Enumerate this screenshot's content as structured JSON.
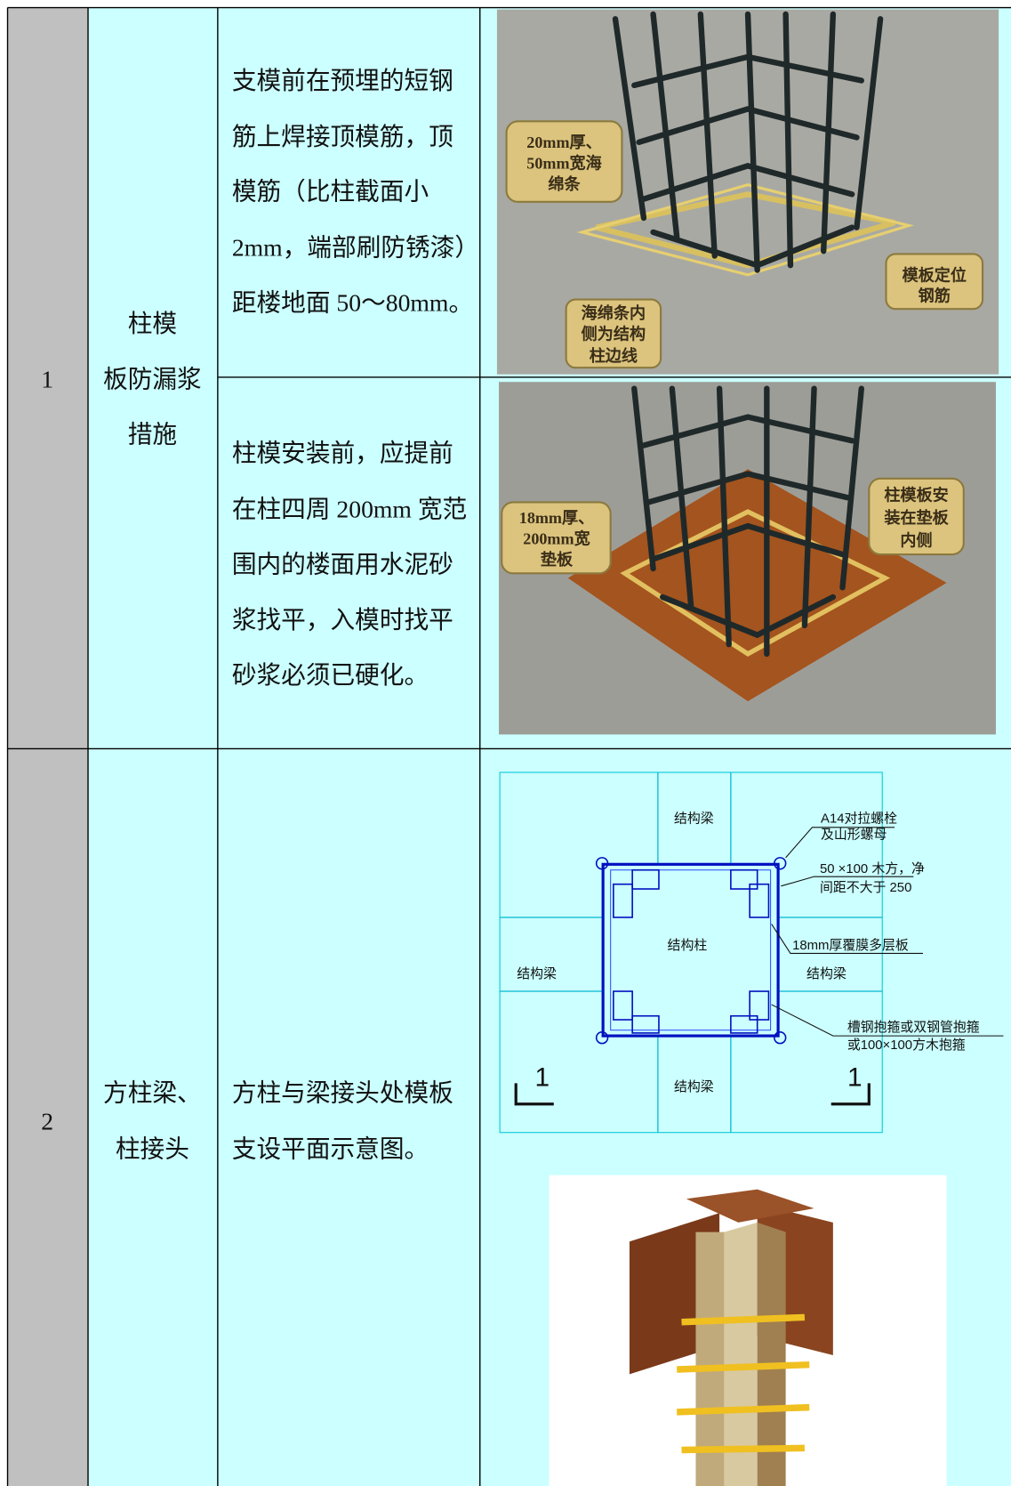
{
  "table": {
    "rows": [
      {
        "no": "1",
        "item": [
          "柱模",
          "板防漏浆",
          "措施"
        ],
        "parts": [
          {
            "text": [
              "支模前在预埋的短钢",
              "筋上焊接顶模筋，顶",
              "模筋（比柱截面小",
              "2mm，端部刷防锈漆）",
              "距楼地面 50～80mm。"
            ],
            "image": {
              "labels": [
                [
                  "20mm厚、",
                  "50mm宽海",
                  "绵条"
                ],
                [
                  "海绵条内",
                  "侧为结构",
                  "柱边线"
                ],
                [
                  "模板定位",
                  "钢筋"
                ]
              ]
            }
          },
          {
            "text": [
              "柱模安装前，应提前",
              "在柱四周 200mm 宽范",
              "围内的楼面用水泥砂",
              "浆找平，入模时找平",
              "砂浆必须已硬化。"
            ],
            "image": {
              "labels": [
                [
                  "18mm厚、",
                  "200mm宽",
                  "垫板"
                ],
                [
                  "柱模板安",
                  "装在垫板",
                  "内侧"
                ]
              ]
            }
          }
        ]
      },
      {
        "no": "2",
        "item": [
          "方柱梁、",
          "柱接头"
        ],
        "parts": [
          {
            "text": [
              "方柱与梁接头处模板",
              "支设平面示意图。"
            ],
            "diagram": {
              "labels": [
                [
                  "结构梁"
                ],
                [
                  "结构梁"
                ],
                [
                  "结构梁"
                ],
                [
                  "结构梁"
                ],
                [
                  "结构柱"
                ],
                [
                  "A14对拉螺栓",
                  "及山形螺母"
                ],
                [
                  "50 ×100 木方，净",
                  "间距不大于 250"
                ],
                [
                  "18mm厚覆膜多层板"
                ],
                [
                  "槽钢抱箍或双钢管抱箍",
                  "或100×100方木抱箍"
                ],
                [
                  "1"
                ],
                [
                  "1"
                ]
              ]
            }
          }
        ]
      }
    ]
  }
}
